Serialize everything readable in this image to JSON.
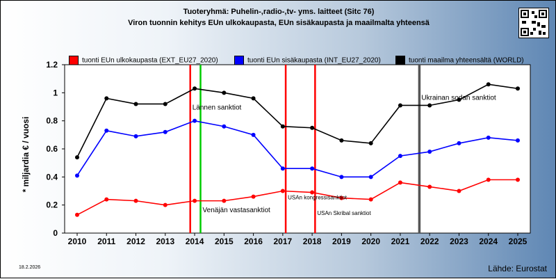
{
  "title_line1": "Tuoteryhmä: Puhelin-,radio-,tv- yms. laitteet (Sitc 76)",
  "title_line2": "Viron tuonnin kehitys EUn ulkokaupasta, EUn sisäkaupasta ja maailmalta yhteensä",
  "date": "18.2.2026",
  "source": "Lähde: Eurostat",
  "chart_data": {
    "type": "line",
    "ylabel": "* miljardia € / vuosi",
    "xlabel": "",
    "ylim": [
      0,
      1.2
    ],
    "yticks": [
      "0",
      "0.2",
      "0.4",
      "0.6",
      "0.8",
      "1",
      "1.2"
    ],
    "grid": false,
    "legend_position": "top",
    "categories": [
      "2010",
      "2011",
      "2012",
      "2013",
      "2014",
      "2015",
      "2016",
      "2017",
      "2018",
      "2019",
      "2020",
      "2021",
      "2022",
      "2023",
      "2024",
      "2025"
    ],
    "series": [
      {
        "name": "tuonti EUn ulkokaupasta (EXT_EU27_2020)",
        "color": "#ff0000",
        "values": [
          0.13,
          0.24,
          0.23,
          0.2,
          0.23,
          0.23,
          0.26,
          0.3,
          0.29,
          0.25,
          0.24,
          0.36,
          0.33,
          0.3,
          0.38,
          0.38
        ]
      },
      {
        "name": "tuonti EUn sisäkaupasta (INT_EU27_2020)",
        "color": "#0000ff",
        "values": [
          0.41,
          0.73,
          0.69,
          0.72,
          0.8,
          0.76,
          0.7,
          0.46,
          0.46,
          0.4,
          0.4,
          0.55,
          0.58,
          0.64,
          0.68,
          0.66
        ]
      },
      {
        "name": "tuonti maailma yhteensältä (WORLD)",
        "color": "#000000",
        "values": [
          0.54,
          0.96,
          0.92,
          0.92,
          1.03,
          1.0,
          0.96,
          0.76,
          0.75,
          0.66,
          0.64,
          0.91,
          0.91,
          0.95,
          1.06,
          1.03
        ]
      }
    ],
    "events": [
      {
        "x": 2013.85,
        "color": "#ff0000",
        "label": "Lännen sanktiot",
        "label_y": 0.88,
        "small": false
      },
      {
        "x": 2014.2,
        "color": "#00cc00",
        "label": "Venäjän vastasanktiot",
        "label_y": 0.15,
        "small": false
      },
      {
        "x": 2017.1,
        "color": "#ff0000",
        "label": "USAn kongressisanktiot",
        "label_y": 0.24,
        "small": true
      },
      {
        "x": 2018.1,
        "color": "#ff0000",
        "label": "USAn Skribal sanktiot",
        "label_y": 0.13,
        "small": true
      },
      {
        "x": 2021.65,
        "color": "#555555",
        "label": "Ukrainan sodan sanktiot",
        "label_y": 0.95,
        "small": false
      }
    ]
  }
}
